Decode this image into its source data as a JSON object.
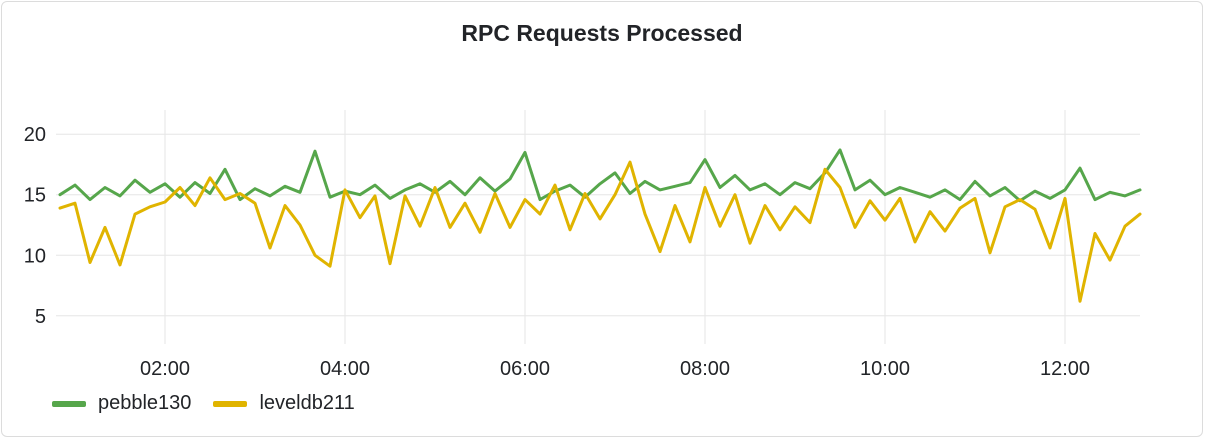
{
  "panel": {
    "title": "RPC Requests Processed"
  },
  "chart_data": {
    "type": "line",
    "title": "RPC Requests Processed",
    "xlabel": "",
    "ylabel": "",
    "x_unit": "time of day (HH:MM)",
    "xlim": [
      "00:50",
      "12:50"
    ],
    "ylim": [
      3,
      22
    ],
    "y_ticks": [
      5,
      10,
      15,
      20
    ],
    "y_tick_labels": [
      "5",
      "10",
      "15",
      "20"
    ],
    "x_ticks": [
      "02:00",
      "04:00",
      "06:00",
      "08:00",
      "10:00",
      "12:00"
    ],
    "x_tick_labels": [
      "02:00",
      "04:00",
      "06:00",
      "08:00",
      "10:00",
      "12:00"
    ],
    "grid": true,
    "legend": "bottom-left",
    "series": [
      {
        "name": "pebble130",
        "color": "#56a64b",
        "points": [
          [
            "00:50",
            15.0
          ],
          [
            "01:00",
            15.8
          ],
          [
            "01:10",
            14.6
          ],
          [
            "01:20",
            15.6
          ],
          [
            "01:30",
            14.9
          ],
          [
            "01:40",
            16.2
          ],
          [
            "01:50",
            15.2
          ],
          [
            "02:00",
            15.9
          ],
          [
            "02:10",
            14.8
          ],
          [
            "02:20",
            16.0
          ],
          [
            "02:30",
            15.1
          ],
          [
            "02:40",
            17.1
          ],
          [
            "02:50",
            14.6
          ],
          [
            "03:00",
            15.5
          ],
          [
            "03:10",
            14.9
          ],
          [
            "03:20",
            15.7
          ],
          [
            "03:30",
            15.2
          ],
          [
            "03:40",
            18.6
          ],
          [
            "03:50",
            14.8
          ],
          [
            "04:00",
            15.3
          ],
          [
            "04:10",
            15.0
          ],
          [
            "04:20",
            15.8
          ],
          [
            "04:30",
            14.7
          ],
          [
            "04:40",
            15.4
          ],
          [
            "04:50",
            15.9
          ],
          [
            "05:00",
            15.2
          ],
          [
            "05:10",
            16.1
          ],
          [
            "05:20",
            15.0
          ],
          [
            "05:30",
            16.4
          ],
          [
            "05:40",
            15.3
          ],
          [
            "05:50",
            16.3
          ],
          [
            "06:00",
            18.5
          ],
          [
            "06:10",
            14.6
          ],
          [
            "06:20",
            15.3
          ],
          [
            "06:30",
            15.8
          ],
          [
            "06:40",
            14.8
          ],
          [
            "06:50",
            15.9
          ],
          [
            "07:00",
            16.8
          ],
          [
            "07:10",
            15.1
          ],
          [
            "07:20",
            16.1
          ],
          [
            "07:30",
            15.4
          ],
          [
            "07:40",
            15.7
          ],
          [
            "07:50",
            16.0
          ],
          [
            "08:00",
            17.9
          ],
          [
            "08:10",
            15.6
          ],
          [
            "08:20",
            16.6
          ],
          [
            "08:30",
            15.4
          ],
          [
            "08:40",
            15.9
          ],
          [
            "08:50",
            15.0
          ],
          [
            "09:00",
            16.0
          ],
          [
            "09:10",
            15.5
          ],
          [
            "09:20",
            16.8
          ],
          [
            "09:30",
            18.7
          ],
          [
            "09:40",
            15.4
          ],
          [
            "09:50",
            16.2
          ],
          [
            "10:00",
            15.0
          ],
          [
            "10:10",
            15.6
          ],
          [
            "10:20",
            15.2
          ],
          [
            "10:30",
            14.8
          ],
          [
            "10:40",
            15.4
          ],
          [
            "10:50",
            14.6
          ],
          [
            "11:00",
            16.1
          ],
          [
            "11:10",
            14.9
          ],
          [
            "11:20",
            15.6
          ],
          [
            "11:30",
            14.5
          ],
          [
            "11:40",
            15.3
          ],
          [
            "11:50",
            14.7
          ],
          [
            "12:00",
            15.4
          ],
          [
            "12:10",
            17.2
          ],
          [
            "12:20",
            14.6
          ],
          [
            "12:30",
            15.2
          ],
          [
            "12:40",
            14.9
          ],
          [
            "12:50",
            15.4
          ]
        ]
      },
      {
        "name": "leveldb211",
        "color": "#e0b400",
        "points": [
          [
            "00:50",
            13.9
          ],
          [
            "01:00",
            14.3
          ],
          [
            "01:10",
            9.4
          ],
          [
            "01:20",
            12.3
          ],
          [
            "01:30",
            9.2
          ],
          [
            "01:40",
            13.4
          ],
          [
            "01:50",
            14.0
          ],
          [
            "02:00",
            14.4
          ],
          [
            "02:10",
            15.6
          ],
          [
            "02:20",
            14.1
          ],
          [
            "02:30",
            16.4
          ],
          [
            "02:40",
            14.6
          ],
          [
            "02:50",
            15.1
          ],
          [
            "03:00",
            14.3
          ],
          [
            "03:10",
            10.6
          ],
          [
            "03:20",
            14.1
          ],
          [
            "03:30",
            12.5
          ],
          [
            "03:40",
            10.0
          ],
          [
            "03:50",
            9.1
          ],
          [
            "04:00",
            15.4
          ],
          [
            "04:10",
            13.1
          ],
          [
            "04:20",
            14.9
          ],
          [
            "04:30",
            9.3
          ],
          [
            "04:40",
            14.9
          ],
          [
            "04:50",
            12.4
          ],
          [
            "05:00",
            15.6
          ],
          [
            "05:10",
            12.3
          ],
          [
            "05:20",
            14.3
          ],
          [
            "05:30",
            11.9
          ],
          [
            "05:40",
            15.1
          ],
          [
            "05:50",
            12.3
          ],
          [
            "06:00",
            14.6
          ],
          [
            "06:10",
            13.4
          ],
          [
            "06:20",
            15.8
          ],
          [
            "06:30",
            12.1
          ],
          [
            "06:40",
            15.1
          ],
          [
            "06:50",
            13.0
          ],
          [
            "07:00",
            15.0
          ],
          [
            "07:10",
            17.7
          ],
          [
            "07:20",
            13.4
          ],
          [
            "07:30",
            10.3
          ],
          [
            "07:40",
            14.1
          ],
          [
            "07:50",
            11.1
          ],
          [
            "08:00",
            15.6
          ],
          [
            "08:10",
            12.4
          ],
          [
            "08:20",
            15.0
          ],
          [
            "08:30",
            11.0
          ],
          [
            "08:40",
            14.1
          ],
          [
            "08:50",
            12.1
          ],
          [
            "09:00",
            14.0
          ],
          [
            "09:10",
            12.7
          ],
          [
            "09:20",
            17.1
          ],
          [
            "09:30",
            15.6
          ],
          [
            "09:40",
            12.3
          ],
          [
            "09:50",
            14.5
          ],
          [
            "10:00",
            12.9
          ],
          [
            "10:10",
            14.7
          ],
          [
            "10:20",
            11.1
          ],
          [
            "10:30",
            13.6
          ],
          [
            "10:40",
            12.0
          ],
          [
            "10:50",
            13.9
          ],
          [
            "11:00",
            14.7
          ],
          [
            "11:10",
            10.2
          ],
          [
            "11:20",
            14.0
          ],
          [
            "11:30",
            14.6
          ],
          [
            "11:40",
            13.8
          ],
          [
            "11:50",
            10.6
          ],
          [
            "12:00",
            14.7
          ],
          [
            "12:10",
            6.2
          ],
          [
            "12:20",
            11.8
          ],
          [
            "12:30",
            9.6
          ],
          [
            "12:40",
            12.4
          ],
          [
            "12:50",
            13.4
          ]
        ]
      }
    ]
  }
}
